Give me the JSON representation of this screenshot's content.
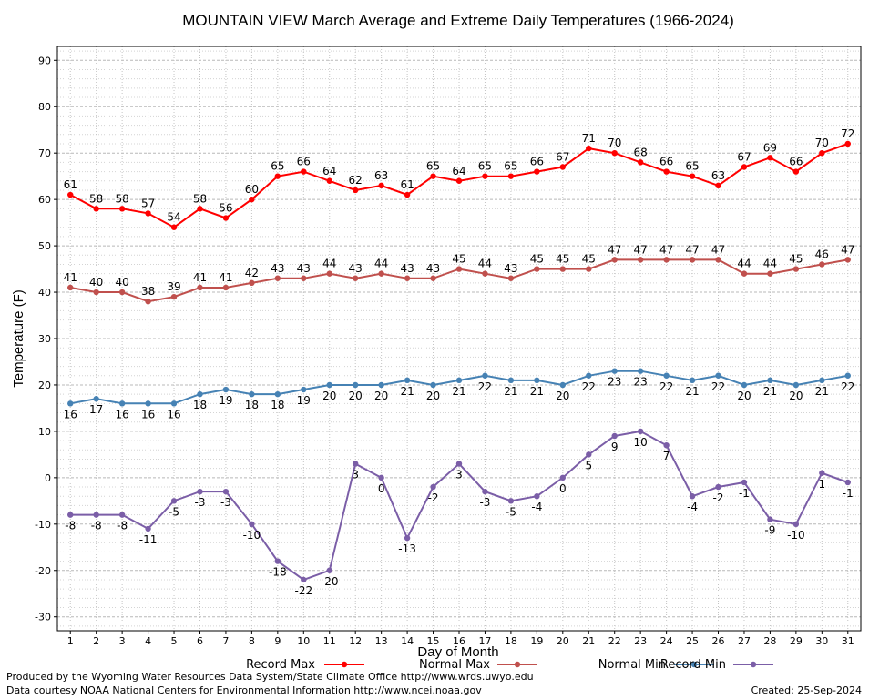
{
  "chart_data": {
    "type": "line",
    "title": "MOUNTAIN VIEW March Average and Extreme Daily Temperatures (1966-2024)",
    "xlabel": "Day of Month",
    "ylabel": "Temperature (F)",
    "ylim": [
      -33,
      93
    ],
    "yticks": [
      -30,
      -20,
      -10,
      0,
      10,
      20,
      30,
      40,
      50,
      60,
      70,
      80,
      90
    ],
    "x": [
      1,
      2,
      3,
      4,
      5,
      6,
      7,
      8,
      9,
      10,
      11,
      12,
      13,
      14,
      15,
      16,
      17,
      18,
      19,
      20,
      21,
      22,
      23,
      24,
      25,
      26,
      27,
      28,
      29,
      30,
      31
    ],
    "grid": true,
    "legend_position": "bottom",
    "series": [
      {
        "name": "Record Max",
        "color": "#ff0000",
        "label_pos": "above",
        "values": [
          61,
          58,
          58,
          57,
          54,
          58,
          56,
          60,
          65,
          66,
          64,
          62,
          63,
          61,
          65,
          64,
          65,
          65,
          66,
          67,
          71,
          70,
          68,
          66,
          65,
          63,
          67,
          69,
          66,
          70,
          72
        ]
      },
      {
        "name": "Normal Max",
        "color": "#c0504d",
        "label_pos": "above",
        "values": [
          41,
          40,
          40,
          38,
          39,
          41,
          41,
          42,
          43,
          43,
          44,
          43,
          44,
          43,
          43,
          45,
          44,
          43,
          45,
          45,
          45,
          47,
          47,
          47,
          47,
          47,
          44,
          44,
          45,
          46,
          47
        ]
      },
      {
        "name": "Normal Min",
        "color": "#4682b4",
        "label_pos": "below",
        "values": [
          16,
          17,
          16,
          16,
          16,
          18,
          19,
          18,
          18,
          19,
          20,
          20,
          20,
          21,
          20,
          21,
          22,
          21,
          21,
          20,
          22,
          23,
          23,
          22,
          21,
          22,
          20,
          21,
          20,
          21,
          22
        ]
      },
      {
        "name": "Record Min",
        "color": "#7b5ea7",
        "label_pos": "below",
        "values": [
          -8,
          -8,
          -8,
          -11,
          -5,
          -3,
          -3,
          -10,
          -18,
          -22,
          -20,
          3,
          0,
          -13,
          -2,
          3,
          -3,
          -5,
          -4,
          0,
          5,
          9,
          10,
          7,
          -4,
          -2,
          -1,
          -9,
          -10,
          1,
          -1
        ]
      }
    ]
  },
  "footer": {
    "produced_by": "Produced by the Wyoming Water Resources Data System/State Climate Office http://www.wrds.uwyo.edu",
    "data_courtesy": "Data courtesy NOAA National Centers for Environmental Information http://www.ncei.noaa.gov",
    "created": "Created:  25-Sep-2024"
  }
}
